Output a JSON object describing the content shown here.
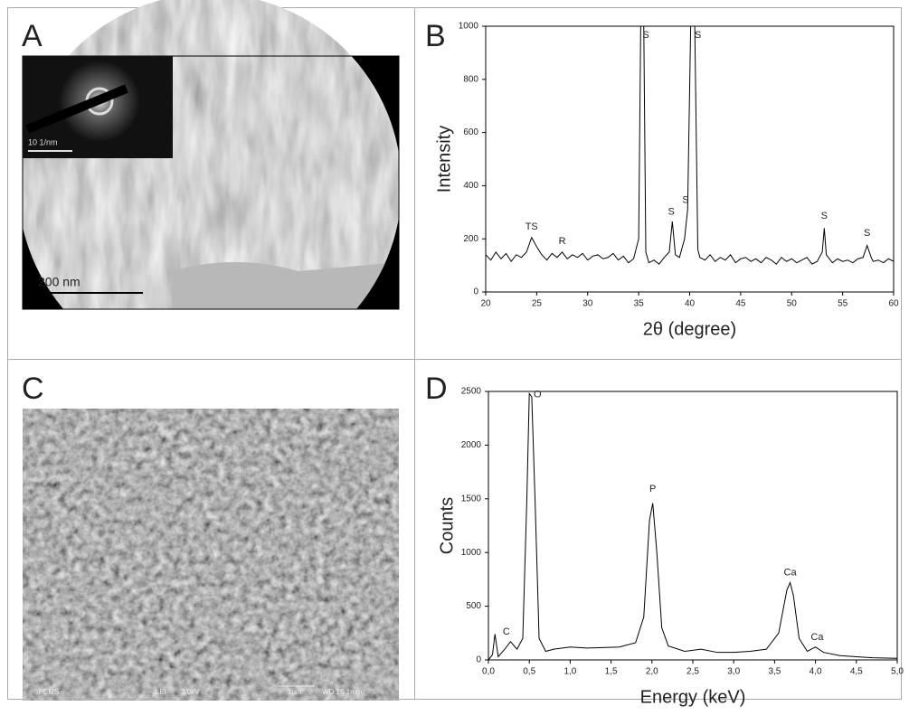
{
  "panels": [
    {
      "letter": "A",
      "texts": [
        "200 nm",
        "10 1/nm"
      ]
    },
    {
      "letter": "B"
    },
    {
      "letter": "C",
      "texts": [
        "IPCMS",
        "LEI",
        "3.0kV",
        "1μm",
        "WD 15.1mm"
      ]
    },
    {
      "letter": "D"
    }
  ],
  "chart_data": [
    {
      "type": "line",
      "xlabel": "2θ (degree)",
      "ylabel": "Intensity",
      "color": "#000000",
      "xlim": [
        20,
        60
      ],
      "xticks": [
        20,
        25,
        30,
        35,
        40,
        45,
        50,
        55,
        60
      ],
      "ylim": [
        0,
        1000
      ],
      "yticks": [
        0,
        200,
        400,
        600,
        800,
        1000
      ],
      "x": [
        20,
        20.5,
        21,
        21.5,
        22,
        22.5,
        23,
        23.5,
        24,
        24.5,
        25,
        25.5,
        26,
        26.5,
        27,
        27.5,
        28,
        28.5,
        29,
        29.5,
        30,
        30.5,
        31,
        31.5,
        32,
        32.5,
        33,
        33.5,
        34,
        34.5,
        35,
        35.2,
        35.5,
        35.7,
        36,
        36.5,
        37,
        37.5,
        38,
        38.3,
        38.6,
        39,
        39.5,
        39.8,
        40.1,
        40.5,
        40.8,
        41,
        41.5,
        42,
        42.5,
        43,
        43.5,
        44,
        44.5,
        45,
        45.5,
        46,
        46.5,
        47,
        47.5,
        48,
        48.5,
        49,
        49.5,
        50,
        50.5,
        51,
        51.5,
        52,
        52.5,
        53,
        53.2,
        53.4,
        54,
        54.5,
        55,
        55.5,
        56,
        56.5,
        57,
        57.4,
        57.8,
        58,
        58.5,
        59,
        59.5,
        60
      ],
      "values": [
        140,
        120,
        150,
        125,
        145,
        115,
        140,
        130,
        150,
        205,
        170,
        140,
        120,
        145,
        130,
        150,
        125,
        140,
        130,
        145,
        120,
        135,
        140,
        125,
        130,
        145,
        120,
        135,
        110,
        125,
        200,
        1000,
        1000,
        150,
        110,
        120,
        105,
        130,
        150,
        265,
        140,
        130,
        200,
        310,
        1000,
        1000,
        160,
        130,
        120,
        140,
        115,
        130,
        120,
        140,
        110,
        125,
        130,
        115,
        125,
        110,
        130,
        120,
        105,
        130,
        115,
        125,
        110,
        120,
        130,
        105,
        115,
        150,
        240,
        140,
        110,
        125,
        115,
        120,
        110,
        125,
        130,
        175,
        130,
        115,
        120,
        110,
        125,
        115
      ],
      "annotations": [
        {
          "text": "TS",
          "x": 24.5,
          "y": 245
        },
        {
          "text": "R",
          "x": 27.5,
          "y": 190
        },
        {
          "text": "S",
          "x": 35.7,
          "y": 965
        },
        {
          "text": "S",
          "x": 38.2,
          "y": 300
        },
        {
          "text": "S",
          "x": 39.6,
          "y": 345
        },
        {
          "text": "S",
          "x": 40.8,
          "y": 965
        },
        {
          "text": "S",
          "x": 53.2,
          "y": 285
        },
        {
          "text": "S",
          "x": 57.4,
          "y": 220
        }
      ]
    },
    {
      "type": "line",
      "xlabel": "Energy (keV)",
      "ylabel": "Counts",
      "color": "#000000",
      "xlim": [
        0,
        5
      ],
      "xticks": [
        {
          "value": 0,
          "label": "0,0"
        },
        {
          "value": 0.5,
          "label": "0,5"
        },
        {
          "value": 1,
          "label": "1,0"
        },
        {
          "value": 1.5,
          "label": "1,5"
        },
        {
          "value": 2,
          "label": "2,0"
        },
        {
          "value": 2.5,
          "label": "2,5"
        },
        {
          "value": 3,
          "label": "3,0"
        },
        {
          "value": 3.5,
          "label": "3,5"
        },
        {
          "value": 4,
          "label": "4,0"
        },
        {
          "value": 4.5,
          "label": "4,5"
        },
        {
          "value": 5,
          "label": "5,0"
        }
      ],
      "ylim": [
        0,
        2500
      ],
      "yticks": [
        0,
        500,
        1000,
        1500,
        2000,
        2500
      ],
      "x": [
        0,
        0.05,
        0.08,
        0.12,
        0.2,
        0.27,
        0.35,
        0.42,
        0.47,
        0.5,
        0.53,
        0.57,
        0.62,
        0.7,
        0.8,
        1.0,
        1.2,
        1.4,
        1.6,
        1.8,
        1.9,
        1.97,
        2.01,
        2.06,
        2.12,
        2.2,
        2.4,
        2.6,
        2.8,
        3.0,
        3.2,
        3.4,
        3.55,
        3.65,
        3.69,
        3.73,
        3.8,
        3.9,
        4.0,
        4.1,
        4.3,
        4.5,
        4.7,
        5.0
      ],
      "values": [
        0,
        50,
        240,
        30,
        100,
        170,
        100,
        200,
        1500,
        2480,
        2450,
        1500,
        200,
        80,
        100,
        120,
        110,
        115,
        120,
        160,
        400,
        1300,
        1460,
        1000,
        300,
        130,
        80,
        100,
        70,
        70,
        80,
        100,
        250,
        650,
        720,
        600,
        200,
        80,
        120,
        70,
        40,
        30,
        20,
        15
      ],
      "annotations": [
        {
          "text": "C",
          "x": 0.22,
          "y": 260
        },
        {
          "text": "O",
          "x": 0.6,
          "y": 2470
        },
        {
          "text": "P",
          "x": 2.01,
          "y": 1590
        },
        {
          "text": "Ca",
          "x": 3.69,
          "y": 810
        },
        {
          "text": "Ca",
          "x": 4.02,
          "y": 210
        }
      ]
    }
  ]
}
